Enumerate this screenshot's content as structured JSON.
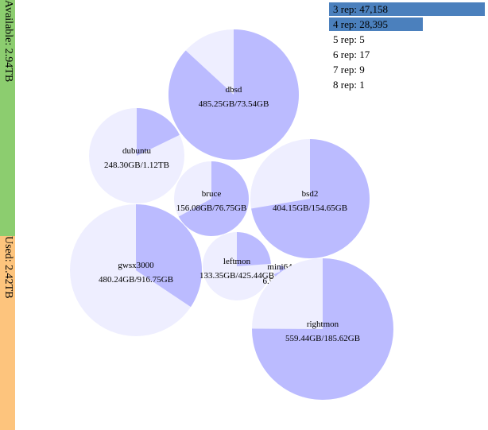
{
  "capacity": {
    "available": {
      "label": "Available: 2.94TB",
      "value_tb": 2.94,
      "color": "#8ccd6f"
    },
    "used": {
      "label": "Used: 2.42TB",
      "value_tb": 2.42,
      "color": "#fdc47d"
    }
  },
  "colors": {
    "used_slice": "#bbbbff",
    "free_slice": "#eeeeff",
    "legend_bar": "#4b80bd"
  },
  "servers": [
    {
      "name": "dbsd",
      "label": "485.25GB/73.54GB",
      "used_gb": 485.25,
      "free_gb": 73.54
    },
    {
      "name": "dubuntu",
      "label": "248.30GB/1.12TB",
      "used_gb": 248.3,
      "free_gb": 1146.88
    },
    {
      "name": "bruce",
      "label": "156.08GB/76.75GB",
      "used_gb": 156.08,
      "free_gb": 76.75
    },
    {
      "name": "bsd2",
      "label": "404.15GB/154.65GB",
      "used_gb": 404.15,
      "free_gb": 154.65
    },
    {
      "name": "gwsx3000",
      "label": "480.24GB/916.75GB",
      "used_gb": 480.24,
      "free_gb": 916.75
    },
    {
      "name": "leftmon",
      "label": "133.35GB/425.44GB",
      "used_gb": 133.35,
      "free_gb": 425.44
    },
    {
      "name": "mini64",
      "label": "6.59GB/3",
      "used_gb": 6.59,
      "free_gb": 3.0
    },
    {
      "name": "rightmon",
      "label": "559.44GB/185.62GB",
      "used_gb": 559.44,
      "free_gb": 185.62
    }
  ],
  "replicas": [
    {
      "label": "3 rep: 47,158",
      "count": 47158
    },
    {
      "label": "4 rep: 28,395",
      "count": 28395
    },
    {
      "label": "5 rep: 5",
      "count": 5
    },
    {
      "label": "6 rep: 17",
      "count": 17
    },
    {
      "label": "7 rep: 9",
      "count": 9
    },
    {
      "label": "8 rep: 1",
      "count": 1
    }
  ]
}
